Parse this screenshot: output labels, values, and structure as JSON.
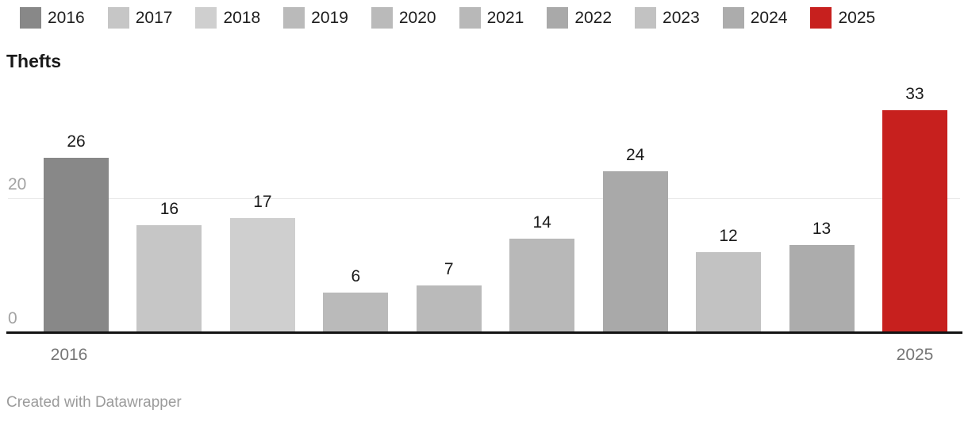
{
  "chart_data": {
    "type": "bar",
    "title": "Thefts",
    "categories": [
      "2016",
      "2017",
      "2018",
      "2019",
      "2020",
      "2021",
      "2022",
      "2023",
      "2024",
      "2025"
    ],
    "values": [
      26,
      16,
      17,
      6,
      7,
      14,
      24,
      12,
      13,
      33
    ],
    "bar_colors": [
      "#888888",
      "#c6c6c6",
      "#cfcfcf",
      "#bababa",
      "#bababa",
      "#b8b8b8",
      "#a9a9a9",
      "#c2c2c2",
      "#acacac",
      "#c7201e"
    ],
    "xlabel": "",
    "ylabel": "",
    "ylim": [
      0,
      34
    ],
    "yticks": [
      0,
      20
    ],
    "grid": "horizontal gridline at y=20 only, black baseline at y=0",
    "legend_position": "top",
    "highlight_note": "2025 bar shown in red, all other years in grayscale"
  },
  "axis": {
    "y_tick_labels": [
      "20",
      "0"
    ],
    "x_tick_labels": [
      "2016",
      "2025"
    ]
  },
  "footer": {
    "credit": "Created with Datawrapper"
  },
  "colors": {
    "accent_red": "#c7201e",
    "axis_line": "#131313",
    "gridline": "#e9e9e9",
    "y_tick_text": "#a3a3a3",
    "x_tick_text": "#767676",
    "value_label_text": "#1a1a1a",
    "footer_text": "#9b9b9b",
    "background": "#ffffff"
  }
}
